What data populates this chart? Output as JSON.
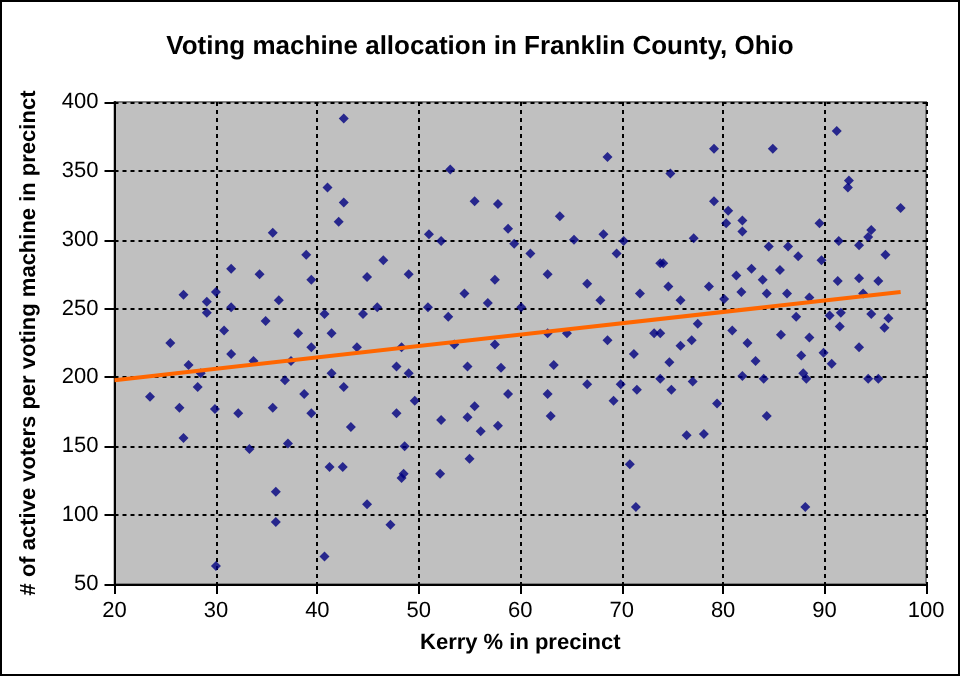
{
  "chart_data": {
    "type": "scatter",
    "title": "Voting machine allocation in Franklin County, Ohio",
    "xlabel": "Kerry % in precinct",
    "ylabel": "# of active voters per voting machine in precinct",
    "xlim": [
      20,
      100
    ],
    "xticks": [
      20,
      30,
      40,
      50,
      60,
      70,
      80,
      90,
      100
    ],
    "ylim": [
      50,
      400
    ],
    "yticks": [
      50,
      100,
      150,
      200,
      250,
      300,
      350,
      400
    ],
    "grid": true,
    "marker": "diamond",
    "series": [
      {
        "color": "#000080",
        "x": [
          42.6,
          41.0,
          42.6,
          42.1,
          35.6,
          38.9,
          31.5,
          34.3,
          26.8,
          30,
          29.1,
          29.1,
          25.5,
          27.3,
          23.5,
          26.4,
          26.8,
          30,
          40.7,
          35.9,
          35.9,
          44.9,
          47.2,
          33.3,
          41.2,
          42.5,
          37.1,
          29.9,
          32.2,
          31.5,
          28.2,
          28.5,
          46.5,
          44.9,
          44.5,
          39.4,
          38.1,
          36.2,
          34.9,
          33.7,
          36.8,
          38.7,
          39.4,
          37.4,
          41.4,
          41.4,
          42.6,
          43.9,
          45.9,
          40.7,
          43.3,
          39.4,
          35.6,
          31.5,
          30.8,
          47.8,
          48.5,
          47.8,
          53.1,
          55.5,
          57.8,
          58.8,
          63.9,
          68.6,
          51.0,
          52.2,
          59.4,
          61.0,
          65.3,
          68.2,
          70.2,
          69.5,
          49.0,
          54.5,
          57.5,
          60.1,
          62.7,
          66.6,
          67.9,
          71.8,
          73.8,
          50.9,
          52.9,
          56.8,
          62.7,
          68.6,
          73.8,
          48.3,
          53.5,
          57.5,
          64.6,
          71.2,
          49.0,
          54.8,
          58.1,
          63.3,
          66.6,
          69.9,
          71.5,
          49.6,
          52.2,
          55.5,
          58.8,
          62.7,
          69.2,
          54.8,
          57.8,
          63.0,
          48.6,
          48.3,
          52.1,
          55.0,
          70.8,
          71.4,
          56.1,
          91.2,
          84.9,
          79.1,
          74.8,
          92.4,
          92.3,
          97.5,
          79.1,
          80.5,
          81.9,
          80.3,
          81.9,
          89.5,
          94.6,
          94.3,
          91.4,
          93.4,
          77.1,
          84.5,
          86.4,
          87.4,
          96.0,
          89.7,
          74.1,
          81.3,
          82.8,
          85.6,
          83.9,
          91.3,
          93.4,
          95.3,
          74.6,
          78.6,
          81.8,
          84.3,
          86.3,
          88.5,
          93.8,
          75.8,
          80.1,
          91.6,
          94.6,
          90.5,
          87.2,
          96.3,
          77.5,
          91.5,
          95.9,
          80.9,
          85.7,
          73.2,
          82.4,
          88.5,
          93.4,
          75.8,
          76.9,
          74.7,
          83.2,
          89.9,
          87.7,
          90.7,
          73.8,
          77.0,
          81.9,
          84.0,
          87.9,
          88.2,
          94.3,
          95.3,
          74.9,
          79.4,
          84.3,
          76.4,
          78.1,
          88.1
        ],
        "values": [
          388,
          338,
          327,
          313,
          305,
          289,
          279,
          275,
          260,
          262,
          255,
          247,
          225,
          209,
          186,
          178,
          156,
          63,
          70,
          117,
          95,
          108,
          93,
          148,
          135,
          135,
          152,
          177,
          174,
          217,
          193,
          203,
          285,
          273,
          246,
          271,
          232,
          256,
          241,
          212,
          198,
          188,
          174,
          212,
          232,
          203,
          193,
          222,
          251,
          246,
          164,
          222,
          178,
          251,
          234,
          208,
          130,
          174,
          351,
          328,
          326,
          308,
          317,
          360,
          304,
          299,
          297,
          290,
          300,
          304,
          299,
          290,
          275,
          261,
          271,
          251,
          275,
          268,
          256,
          261,
          283,
          251,
          244,
          254,
          232,
          227,
          232,
          222,
          224,
          224,
          232,
          217,
          203,
          208,
          207,
          209,
          195,
          195,
          191,
          183,
          169,
          179,
          188,
          188,
          183,
          171,
          165,
          172,
          150,
          127,
          130,
          141,
          137,
          106,
          161,
          379,
          366,
          366,
          348,
          343,
          338,
          323,
          328,
          321,
          314,
          312,
          306,
          312,
          307,
          302,
          299,
          296,
          301,
          295,
          295,
          288,
          289,
          285,
          283,
          274,
          279,
          278,
          271,
          270,
          272,
          270,
          266,
          266,
          262,
          261,
          261,
          258,
          261,
          256,
          257,
          247,
          246,
          245,
          244,
          243,
          239,
          237,
          236,
          234,
          231,
          232,
          225,
          229,
          222,
          223,
          227,
          211,
          212,
          218,
          216,
          210,
          199,
          197,
          201,
          199,
          203,
          199,
          199,
          199,
          191,
          181,
          172,
          158,
          159,
          106
        ]
      },
      {
        "type": "line",
        "color": "#ff6600",
        "marker": "none",
        "x": [
          20,
          97.5
        ],
        "values": [
          198,
          262
        ]
      }
    ]
  }
}
